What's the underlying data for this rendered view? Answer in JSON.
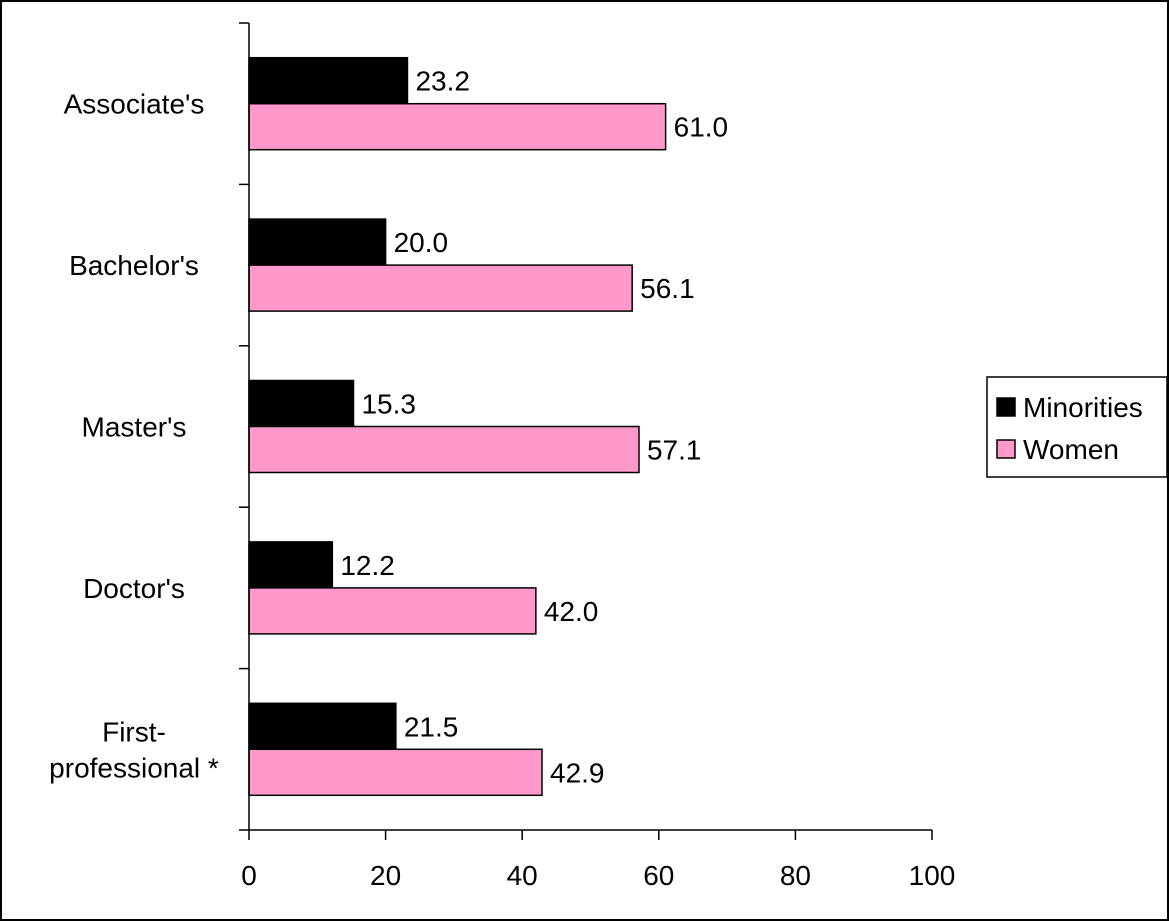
{
  "chart_data": {
    "type": "bar",
    "orientation": "horizontal",
    "title": "",
    "xlabel": "",
    "ylabel": "",
    "categories": [
      "Associate's",
      "Bachelor's",
      "Master's",
      "Doctor's",
      "First-professional *"
    ],
    "series": [
      {
        "name": "Minorities",
        "values": [
          23.2,
          20.0,
          15.3,
          12.2,
          21.5
        ],
        "color": "#000000"
      },
      {
        "name": "Women",
        "values": [
          61.0,
          56.1,
          57.1,
          42.0,
          42.9
        ],
        "color": "#ff99cc"
      }
    ],
    "data_labels": {
      "Minorities": [
        "23.2",
        "20.0",
        "15.3",
        "12.2",
        "21.5"
      ],
      "Women": [
        "61.0",
        "56.1",
        "57.1",
        "42.0",
        "42.9"
      ]
    },
    "xlim": [
      0,
      100
    ],
    "x_ticks": [
      0,
      20,
      40,
      60,
      80,
      100
    ],
    "x_tick_labels": [
      "0",
      "20",
      "40",
      "60",
      "80",
      "100"
    ],
    "grid": false,
    "legend_placement": "right",
    "legend": [
      "Minorities",
      "Women"
    ]
  }
}
